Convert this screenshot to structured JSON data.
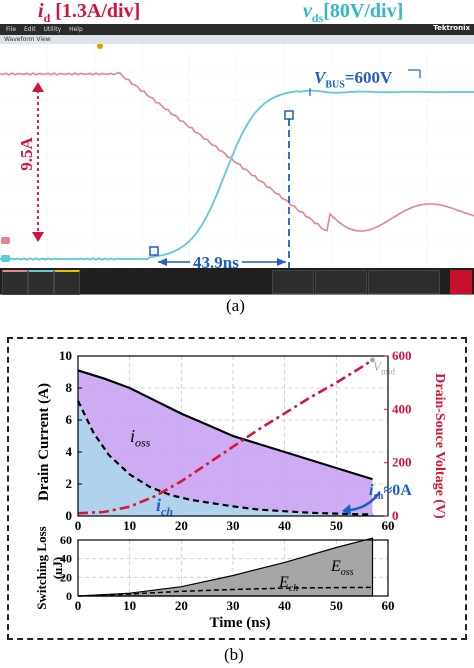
{
  "panel_a": {
    "title_left": "i",
    "title_left_sub": "d",
    "title_left_rest": " [1.3A/div]",
    "title_right": "v",
    "title_right_sub": "ds",
    "title_right_rest": "[80V/div]",
    "brand": "Tektronix",
    "toolbar_items": [
      "File",
      "Edit",
      "Utility",
      "Help"
    ],
    "window_title": "Waveform View",
    "vbus_label": "V",
    "vbus_sub": "BUS",
    "vbus_rest": "=600V",
    "current_span_label": "9.5A",
    "time_span_label": "43.9ns",
    "caption": "(a)",
    "colors": {
      "current": "#e8828c",
      "voltage": "#5ccbd3",
      "annotation": "#1f5fbf",
      "current_label": "#d2143a"
    }
  },
  "panel_b": {
    "caption": "(b)",
    "colors": {
      "drain_current": "#000000",
      "ich": "#000000",
      "voltage": "#d8143a",
      "ioss_fill": "#c9a3f2",
      "ich_fill": "#a8cdea",
      "eoss_fill": "#a6a6a6",
      "arrow": "#1f5fbf"
    }
  },
  "chart_data": [
    {
      "type": "line",
      "title": "",
      "xlabel": "Time (ns)",
      "ylabel": "Drain Current (A)",
      "ylabel_right": "Drain-Souce Voltage (V)",
      "xlim": [
        0,
        60
      ],
      "ylim": [
        0,
        10
      ],
      "ylim_right": [
        0,
        600
      ],
      "xticks": [
        0,
        10,
        20,
        30,
        40,
        50,
        60
      ],
      "yticks": [
        0,
        2,
        4,
        6,
        8,
        10
      ],
      "yticks_right": [
        0,
        200,
        400,
        600
      ],
      "grid": true,
      "series": [
        {
          "name": "i_d",
          "axis": "left",
          "x": [
            0,
            5,
            10,
            15,
            20,
            25,
            30,
            35,
            40,
            45,
            50,
            55,
            57
          ],
          "y": [
            9.1,
            8.6,
            8.0,
            7.2,
            6.4,
            5.7,
            5.0,
            4.5,
            4.0,
            3.5,
            3.0,
            2.5,
            2.3
          ]
        },
        {
          "name": "i_ch",
          "axis": "left",
          "x": [
            0,
            3,
            6,
            10,
            14,
            18,
            22,
            26,
            30,
            35,
            40,
            45,
            50,
            55,
            57
          ],
          "y": [
            7.2,
            5.2,
            3.8,
            2.6,
            1.8,
            1.3,
            1.0,
            0.8,
            0.6,
            0.4,
            0.3,
            0.2,
            0.15,
            0.1,
            0.1
          ]
        },
        {
          "name": "v_ds",
          "axis": "right",
          "x": [
            0,
            5,
            10,
            15,
            20,
            25,
            30,
            35,
            40,
            45,
            50,
            55,
            57
          ],
          "y": [
            10,
            15,
            35,
            75,
            130,
            195,
            260,
            325,
            385,
            445,
            500,
            560,
            585
          ]
        }
      ],
      "annotations": [
        {
          "text": "i",
          "sub": "oss"
        },
        {
          "text": "i",
          "sub": "ch"
        },
        {
          "text": "i",
          "sub": "ch",
          "rest": "≈0A"
        },
        {
          "text": "V",
          "sub": "mid"
        }
      ]
    },
    {
      "type": "area",
      "title": "",
      "xlabel": "Time (ns)",
      "ylabel": "Switching Loss (uJ)",
      "xlim": [
        0,
        60
      ],
      "ylim": [
        0,
        60
      ],
      "xticks": [
        0,
        10,
        20,
        30,
        40,
        50,
        60
      ],
      "yticks": [
        0,
        20,
        40,
        60
      ],
      "grid": true,
      "series": [
        {
          "name": "E_oss",
          "x": [
            0,
            10,
            20,
            30,
            40,
            50,
            57
          ],
          "y": [
            0,
            3,
            10,
            22,
            36,
            52,
            62
          ]
        },
        {
          "name": "E_ch",
          "x": [
            0,
            10,
            20,
            30,
            40,
            50,
            57
          ],
          "y": [
            0,
            2,
            5,
            7,
            8.5,
            9,
            9.2
          ]
        }
      ],
      "annotations": [
        {
          "text": "E",
          "sub": "oss"
        },
        {
          "text": "E",
          "sub": "ch"
        }
      ]
    }
  ]
}
